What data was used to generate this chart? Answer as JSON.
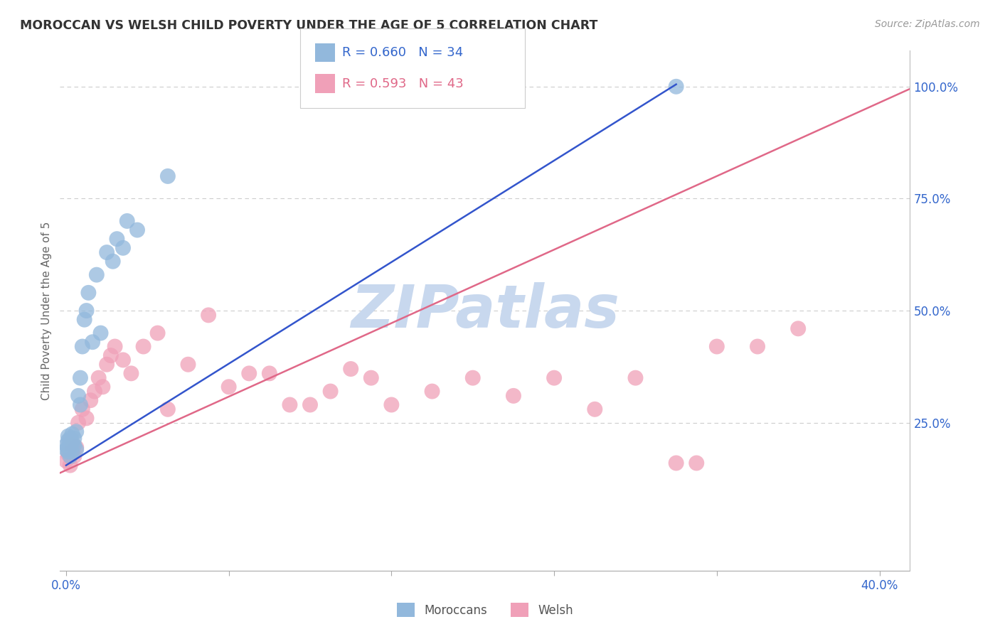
{
  "title": "MOROCCAN VS WELSH CHILD POVERTY UNDER THE AGE OF 5 CORRELATION CHART",
  "source": "Source: ZipAtlas.com",
  "ylabel": "Child Poverty Under the Age of 5",
  "xlim": [
    -0.003,
    0.415
  ],
  "ylim": [
    -0.08,
    1.08
  ],
  "moroccan_R": 0.66,
  "moroccan_N": 34,
  "welsh_R": 0.593,
  "welsh_N": 43,
  "moroccan_color": "#92B8DC",
  "welsh_color": "#F0A0B8",
  "moroccan_line_color": "#3355CC",
  "welsh_line_color": "#E06888",
  "background_color": "#FFFFFF",
  "watermark_color": "#C8D8EE",
  "x_tick_positions": [
    0.0,
    0.08,
    0.16,
    0.24,
    0.32,
    0.4
  ],
  "x_tick_labels": [
    "0.0%",
    "",
    "",
    "",
    "",
    "40.0%"
  ],
  "right_yticks": [
    0.0,
    0.25,
    0.5,
    0.75,
    1.0
  ],
  "right_ytick_labels": [
    "",
    "25.0%",
    "50.0%",
    "75.0%",
    "100.0%"
  ],
  "moroccan_x": [
    0.0,
    0.0,
    0.001,
    0.001,
    0.001,
    0.001,
    0.002,
    0.002,
    0.002,
    0.003,
    0.003,
    0.003,
    0.004,
    0.004,
    0.005,
    0.005,
    0.006,
    0.007,
    0.007,
    0.008,
    0.009,
    0.01,
    0.011,
    0.013,
    0.015,
    0.017,
    0.02,
    0.023,
    0.025,
    0.028,
    0.03,
    0.035,
    0.05,
    0.3
  ],
  "moroccan_y": [
    0.19,
    0.2,
    0.185,
    0.195,
    0.21,
    0.22,
    0.175,
    0.2,
    0.215,
    0.185,
    0.205,
    0.225,
    0.2,
    0.215,
    0.19,
    0.23,
    0.31,
    0.29,
    0.35,
    0.42,
    0.48,
    0.5,
    0.54,
    0.43,
    0.58,
    0.45,
    0.63,
    0.61,
    0.66,
    0.64,
    0.7,
    0.68,
    0.8,
    1.0
  ],
  "welsh_x": [
    0.0,
    0.001,
    0.002,
    0.003,
    0.004,
    0.005,
    0.006,
    0.008,
    0.01,
    0.012,
    0.014,
    0.016,
    0.018,
    0.02,
    0.022,
    0.024,
    0.028,
    0.032,
    0.038,
    0.045,
    0.05,
    0.06,
    0.07,
    0.08,
    0.09,
    0.1,
    0.11,
    0.12,
    0.13,
    0.14,
    0.15,
    0.16,
    0.18,
    0.2,
    0.22,
    0.24,
    0.26,
    0.28,
    0.3,
    0.31,
    0.32,
    0.34,
    0.36
  ],
  "welsh_y": [
    0.165,
    0.18,
    0.155,
    0.2,
    0.175,
    0.195,
    0.25,
    0.28,
    0.26,
    0.3,
    0.32,
    0.35,
    0.33,
    0.38,
    0.4,
    0.42,
    0.39,
    0.36,
    0.42,
    0.45,
    0.28,
    0.38,
    0.49,
    0.33,
    0.36,
    0.36,
    0.29,
    0.29,
    0.32,
    0.37,
    0.35,
    0.29,
    0.32,
    0.35,
    0.31,
    0.35,
    0.28,
    0.35,
    0.16,
    0.16,
    0.42,
    0.42,
    0.46
  ],
  "moroccan_trend_x": [
    0.0,
    0.3
  ],
  "moroccan_trend_y": [
    0.155,
    1.005
  ],
  "welsh_trend_x": [
    -0.003,
    0.415
  ],
  "welsh_trend_y": [
    0.138,
    0.995
  ]
}
